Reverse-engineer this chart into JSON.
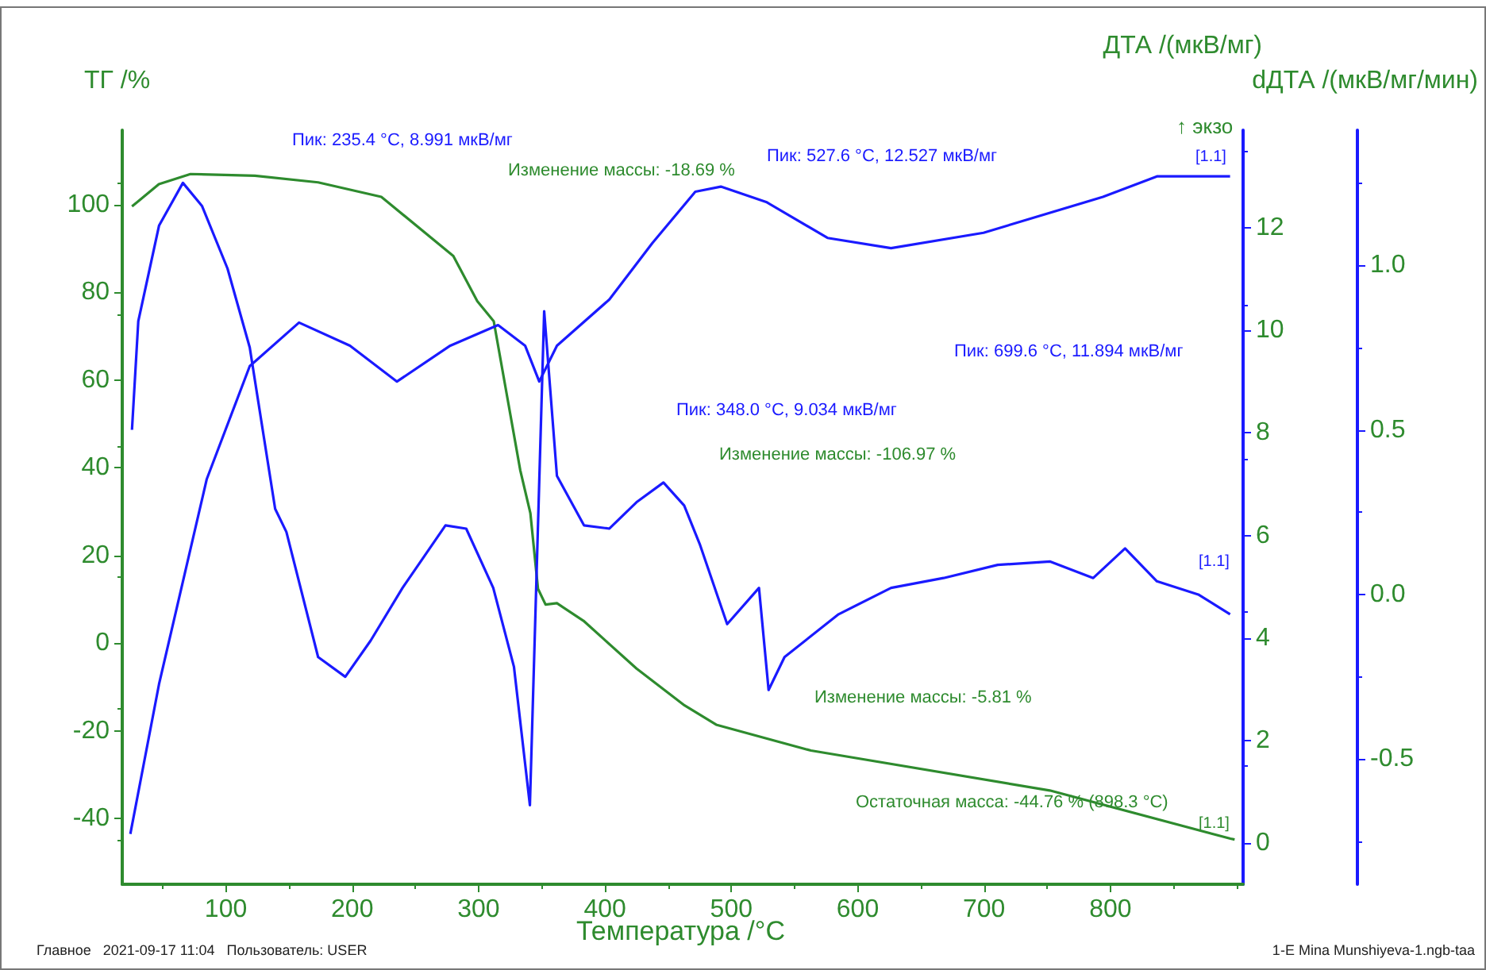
{
  "chart_data": {
    "type": "line",
    "xlabel": "Температура /°C",
    "ylabel": "ТГ /%",
    "y2label": "ДТА /(мкВ/мг)",
    "y3label": "dДТА /(мкВ/мг/мин)",
    "xlim": [
      18,
      905
    ],
    "xticks": [
      100,
      200,
      300,
      400,
      500,
      600,
      700,
      800
    ],
    "ylim": [
      -55,
      117
    ],
    "yticks": [
      -40,
      -20,
      0,
      20,
      40,
      60,
      80,
      100
    ],
    "y2lim": [
      -0.8,
      13.9
    ],
    "y2ticks": [
      0,
      2,
      4,
      6,
      8,
      10,
      12
    ],
    "y3lim": [
      -0.88,
      1.41
    ],
    "y3ticks": [
      -0.5,
      {
        "value": 0,
        "label": "0.0"
      },
      0.5,
      {
        "value": 1,
        "label": "1.0"
      }
    ],
    "grid": false,
    "marker": "none",
    "line_style": "solid",
    "series": [
      {
        "color": "#2e8b2e",
        "x": [
          25.7,
          47,
          72,
          123,
          173,
          223,
          280,
          299,
          312,
          333,
          341,
          347,
          353,
          362,
          383,
          425,
          463,
          488,
          563,
          752,
          895,
          898.3
        ],
        "values": [
          99.6,
          104.7,
          107,
          106.6,
          105.1,
          101.8,
          88.3,
          78,
          73.4,
          39.4,
          29.6,
          12.4,
          8.8,
          9.1,
          5.1,
          -5.8,
          -14.2,
          -18.6,
          -24.5,
          -33.6,
          -44.6,
          -44.8
        ]
      },
      {
        "color": "#1a1aff",
        "axis": "y2",
        "x": [
          24.4,
          47.1,
          84.9,
          118.9,
          157.9,
          198.2,
          235.4,
          277.6,
          315.4,
          336.8,
          348.0,
          362.0,
          403.5,
          437.5,
          471.5,
          491.7,
          527.6,
          576.1,
          626.4,
          699.6,
          794.1,
          836.8,
          894.7
        ],
        "values": [
          0.18,
          3.1,
          7.1,
          9.3,
          10.15,
          9.7,
          9.0,
          9.7,
          10.1,
          9.7,
          9.0,
          9.7,
          10.6,
          11.7,
          12.7,
          12.8,
          12.5,
          11.8,
          11.6,
          11.9,
          12.6,
          13.0,
          13.0
        ]
      },
      {
        "color": "#1a1aff",
        "axis": "y3",
        "x": [
          25.7,
          30.7,
          47.1,
          66.0,
          81.1,
          101.3,
          118.9,
          139.0,
          147.9,
          173.0,
          194.5,
          214.6,
          239.8,
          273.8,
          290.2,
          311.6,
          328.0,
          340.6,
          351.9,
          362.0,
          383.4,
          403.5,
          424.9,
          446.3,
          462.7,
          475.3,
          496.7,
          521.9,
          529.5,
          542.1,
          584.9,
          626.4,
          668.0,
          710.8,
          752.4,
          786.4,
          811.6,
          836.8,
          869.5,
          894.7
        ],
        "values": [
          0.5,
          0.83,
          1.12,
          1.25,
          1.18,
          0.99,
          0.75,
          0.26,
          0.19,
          -0.19,
          -0.25,
          -0.14,
          0.02,
          0.21,
          0.2,
          0.02,
          -0.22,
          -0.64,
          0.86,
          0.36,
          0.21,
          0.2,
          0.28,
          0.34,
          0.27,
          0.15,
          -0.09,
          0.02,
          -0.29,
          -0.19,
          -0.06,
          0.02,
          0.05,
          0.09,
          0.1,
          0.05,
          0.14,
          0.04,
          0.0,
          -0.06
        ]
      }
    ],
    "annotations": [
      "Пик: 235.4 °C, 8.991 мкВ/мг",
      "Изменение массы: -18.69 %",
      "Пик: 527.6 °C, 12.527 мкВ/мг",
      "Пик: 348.0 °C, 9.034 мкВ/мг",
      "Изменение массы: -106.97 %",
      "Пик: 699.6 °C, 11.894 мкВ/мг",
      "Изменение массы: -5.81 %",
      "Остаточная масса: -44.76 % (898.3 °C)",
      "↑ экзо",
      "[1.1]",
      "[1.1]",
      "[1.1]",
      "Главное   2021-09-17 11:04   Пользователь: USER",
      "1-E Mina Munshiyeva-1.ngb-taa"
    ]
  }
}
